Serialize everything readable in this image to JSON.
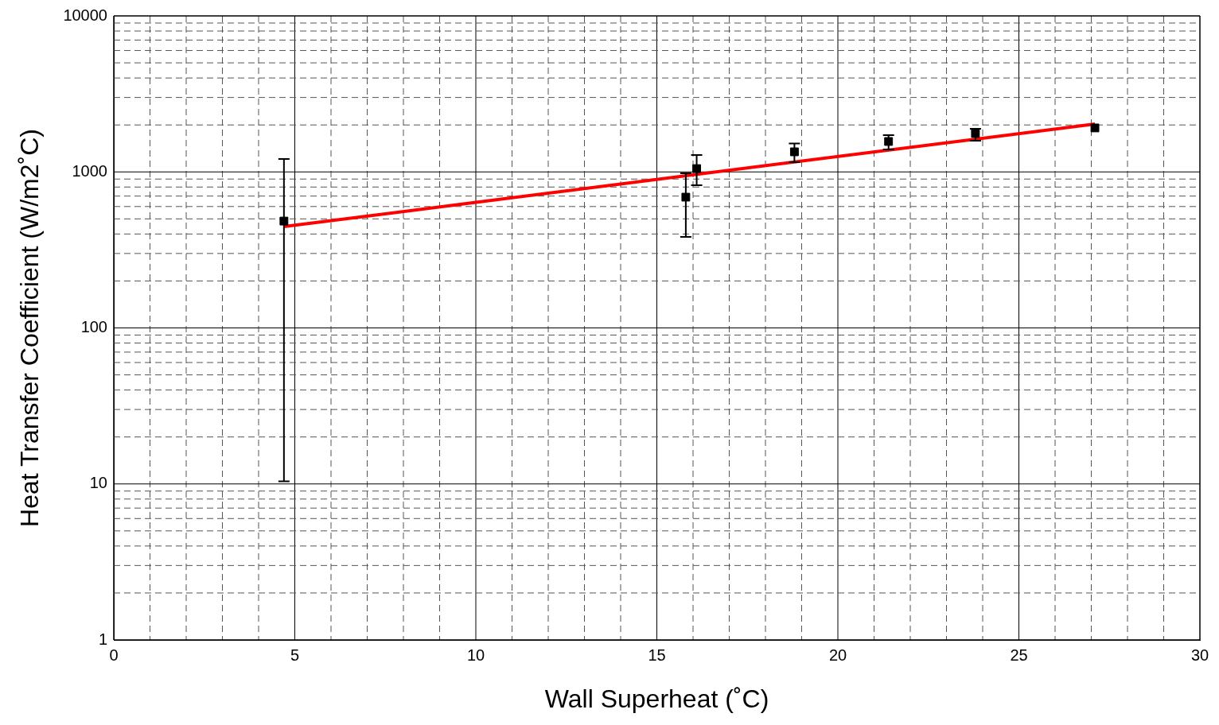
{
  "chart_data": {
    "type": "scatter",
    "xlabel": "Wall Superheat (˚C)",
    "ylabel": "Heat Transfer Coefficient (W/m2˚C)",
    "log": "y",
    "grid": true,
    "legend": false,
    "xlim": [
      0,
      30
    ],
    "xticks": [
      0,
      {
        "value": 1,
        "label": null
      },
      {
        "value": 2,
        "label": null
      },
      {
        "value": 3,
        "label": null
      },
      {
        "value": 4,
        "label": null
      },
      5,
      {
        "value": 6,
        "label": null
      },
      {
        "value": 7,
        "label": null
      },
      {
        "value": 8,
        "label": null
      },
      {
        "value": 9,
        "label": null
      },
      10,
      {
        "value": 11,
        "label": null
      },
      {
        "value": 12,
        "label": null
      },
      {
        "value": 13,
        "label": null
      },
      {
        "value": 14,
        "label": null
      },
      15,
      {
        "value": 16,
        "label": null
      },
      {
        "value": 17,
        "label": null
      },
      {
        "value": 18,
        "label": null
      },
      {
        "value": 19,
        "label": null
      },
      20,
      {
        "value": 21,
        "label": null
      },
      {
        "value": 22,
        "label": null
      },
      {
        "value": 23,
        "label": null
      },
      {
        "value": 24,
        "label": null
      },
      25,
      {
        "value": 26,
        "label": null
      },
      {
        "value": 27,
        "label": null
      },
      {
        "value": 28,
        "label": null
      },
      {
        "value": 29,
        "label": null
      },
      30
    ],
    "ylim": [
      1,
      10000
    ],
    "yticks": [
      1,
      {
        "value": 2,
        "label": null
      },
      {
        "value": 3,
        "label": null
      },
      {
        "value": 4,
        "label": null
      },
      {
        "value": 5,
        "label": null
      },
      {
        "value": 6,
        "label": null
      },
      {
        "value": 7,
        "label": null
      },
      {
        "value": 8,
        "label": null
      },
      {
        "value": 9,
        "label": null
      },
      10,
      {
        "value": 20,
        "label": null
      },
      {
        "value": 30,
        "label": null
      },
      {
        "value": 40,
        "label": null
      },
      {
        "value": 50,
        "label": null
      },
      {
        "value": 60,
        "label": null
      },
      {
        "value": 70,
        "label": null
      },
      {
        "value": 80,
        "label": null
      },
      {
        "value": 90,
        "label": null
      },
      100,
      {
        "value": 200,
        "label": null
      },
      {
        "value": 300,
        "label": null
      },
      {
        "value": 400,
        "label": null
      },
      {
        "value": 500,
        "label": null
      },
      {
        "value": 600,
        "label": null
      },
      {
        "value": 700,
        "label": null
      },
      {
        "value": 800,
        "label": null
      },
      {
        "value": 900,
        "label": null
      },
      1000,
      {
        "value": 2000,
        "label": null
      },
      {
        "value": 3000,
        "label": null
      },
      {
        "value": 4000,
        "label": null
      },
      {
        "value": 5000,
        "label": null
      },
      {
        "value": 6000,
        "label": null
      },
      {
        "value": 7000,
        "label": null
      },
      {
        "value": 8000,
        "label": null
      },
      {
        "value": 9000,
        "label": null
      },
      10000
    ],
    "series": [
      {
        "type": "scatter",
        "marker": "square",
        "color": "#000000",
        "x": [
          4.7,
          15.8,
          16.1,
          18.8,
          21.4,
          23.8,
          27.1
        ],
        "values": [
          484,
          689,
          1050,
          1345,
          1567,
          1763,
          1914
        ],
        "errors": [
          [
            10.4,
            1210
          ],
          [
            383,
            980
          ],
          [
            822,
            1283
          ],
          [
            1154,
            1520
          ],
          [
            1393,
            1722
          ],
          [
            1585,
            1892
          ],
          null
        ]
      },
      {
        "type": "line",
        "marker": "none",
        "color": "#ff0000",
        "x": [
          4.7,
          27.1
        ],
        "values": [
          446,
          2028
        ]
      }
    ]
  }
}
